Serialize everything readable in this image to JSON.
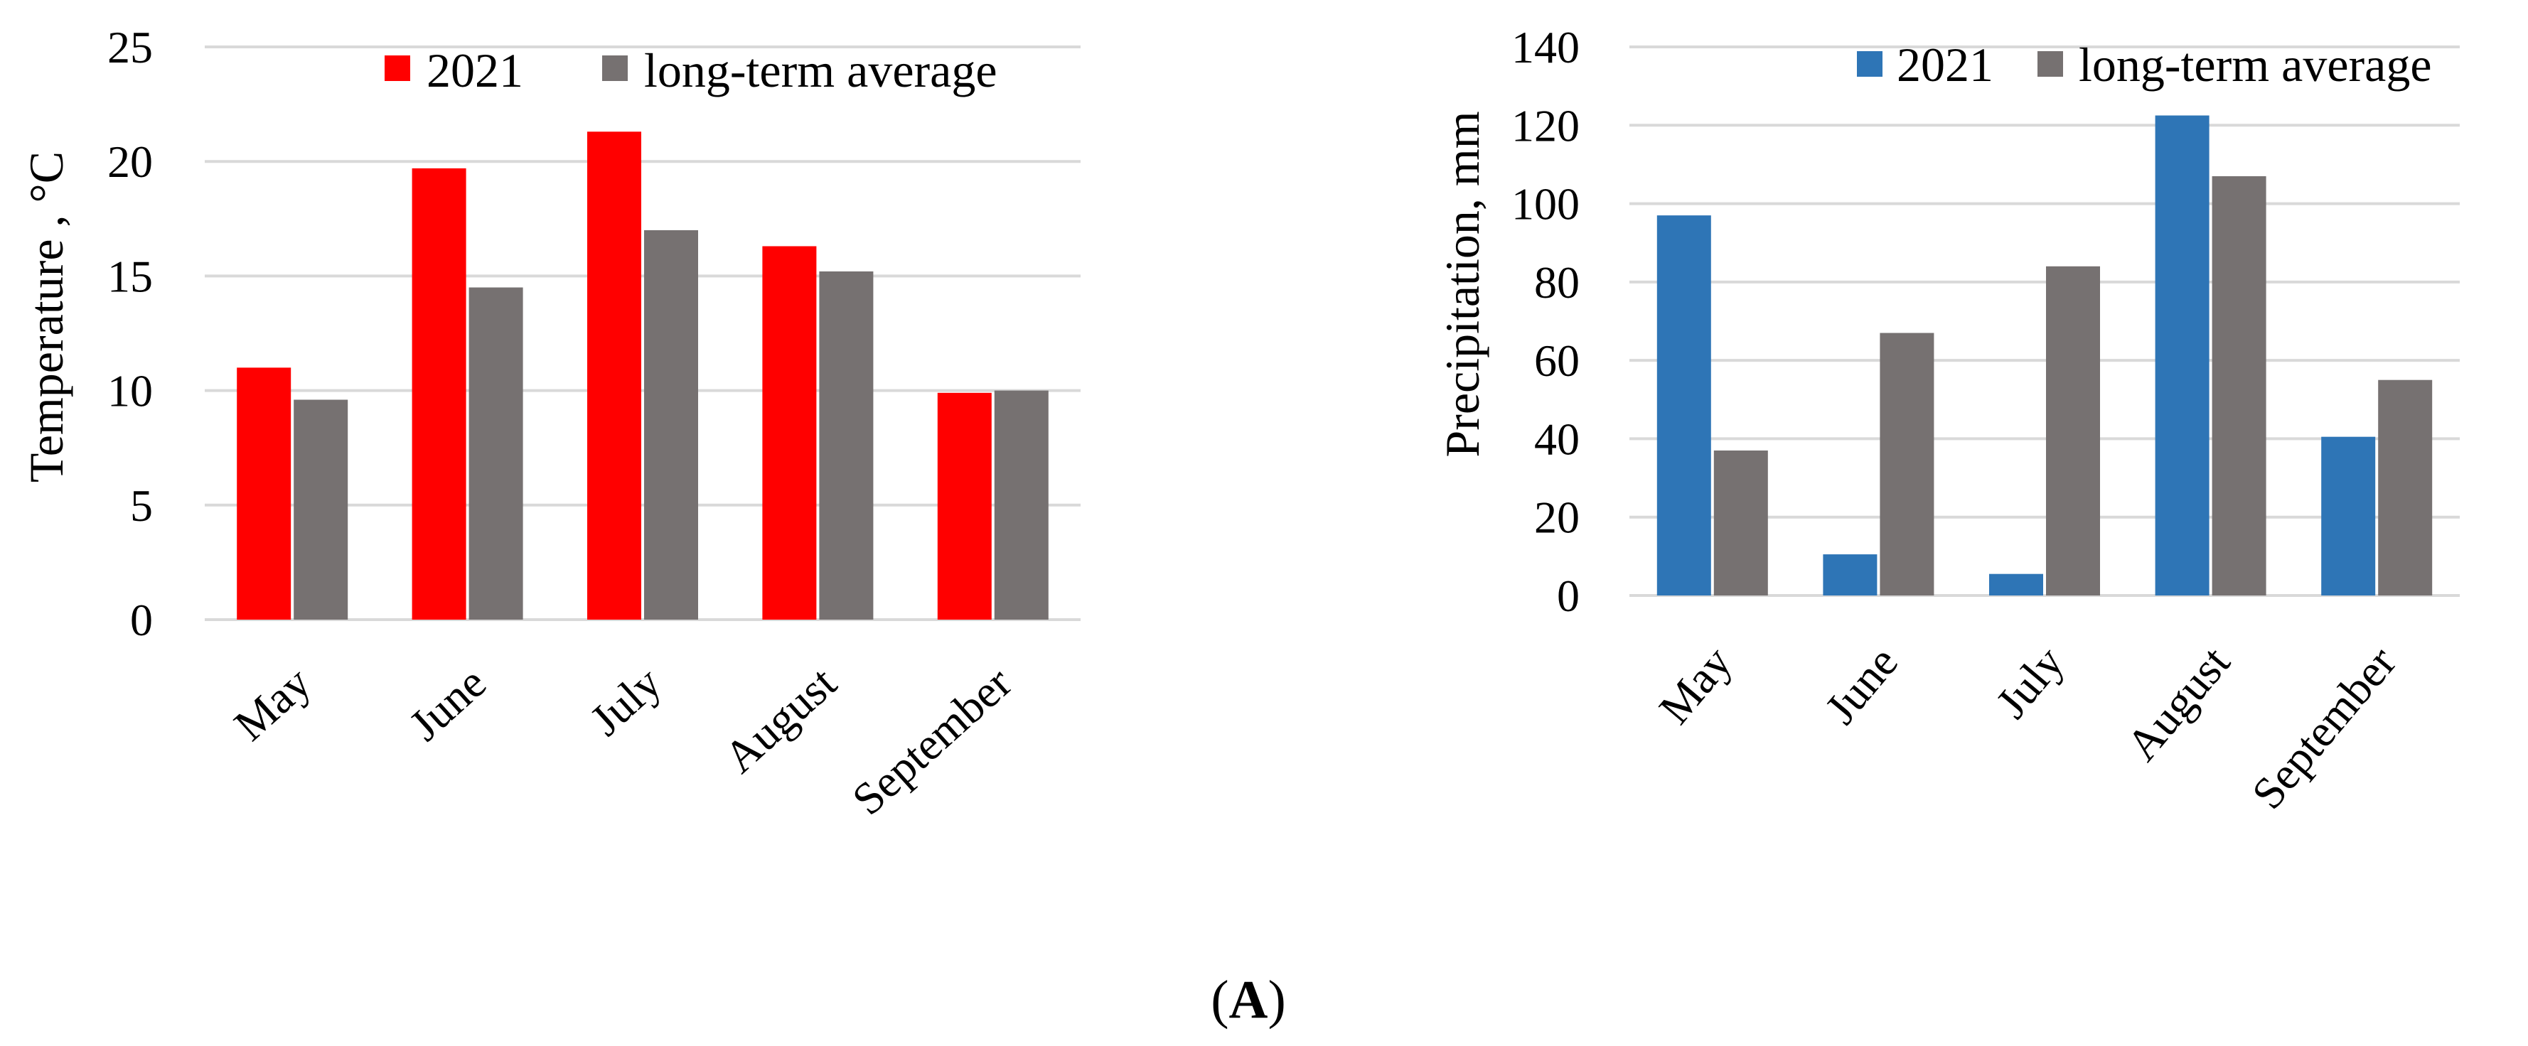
{
  "chart_data": [
    {
      "type": "bar",
      "categories": [
        "May",
        "June",
        "July",
        "August",
        "September"
      ],
      "series": [
        {
          "name": "2021",
          "values": [
            11.0,
            19.7,
            21.3,
            16.3,
            9.9
          ],
          "color": "#ff0000"
        },
        {
          "name": "long-term average",
          "values": [
            9.6,
            14.5,
            17.0,
            15.2,
            10.0
          ],
          "color": "#767171"
        }
      ],
      "title": "",
      "xlabel": "",
      "ylabel": "Temperature , °C",
      "ylim": [
        0,
        25
      ],
      "yticks": [
        "0",
        "5",
        "10",
        "15",
        "20",
        "25"
      ],
      "grid": true,
      "legend": "top"
    },
    {
      "type": "bar",
      "categories": [
        "May",
        "June",
        "July",
        "August",
        "September"
      ],
      "series": [
        {
          "name": "2021",
          "values": [
            97,
            10.5,
            5.5,
            122.5,
            40.5
          ],
          "color": "#2e75b6"
        },
        {
          "name": "long-term average",
          "values": [
            37,
            67,
            84,
            107,
            55
          ],
          "color": "#767171"
        }
      ],
      "title": "",
      "xlabel": "",
      "ylabel": "Precipitation, mm",
      "ylim": [
        0,
        140
      ],
      "yticks": [
        "0",
        "20",
        "40",
        "60",
        "80",
        "100",
        "120",
        "140"
      ],
      "grid": true,
      "legend": "top"
    }
  ],
  "figure": {
    "label_open": "(",
    "label_letter": "A",
    "label_close": ")"
  }
}
